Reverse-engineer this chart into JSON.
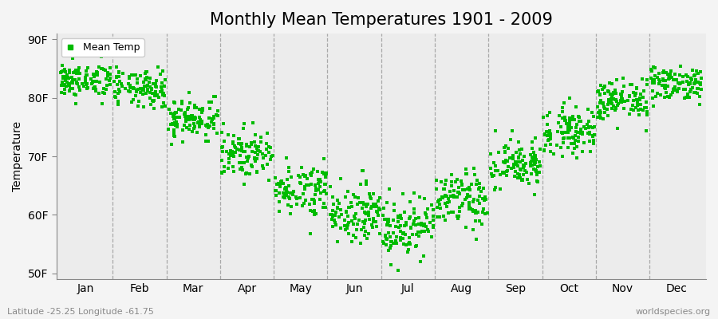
{
  "title": "Monthly Mean Temperatures 1901 - 2009",
  "ylabel": "Temperature",
  "xlabel_labels": [
    "Jan",
    "Feb",
    "Mar",
    "Apr",
    "May",
    "Jun",
    "Jul",
    "Aug",
    "Sep",
    "Oct",
    "Nov",
    "Dec"
  ],
  "yticks": [
    50,
    60,
    70,
    80,
    90
  ],
  "ytick_labels": [
    "50F",
    "60F",
    "70F",
    "80F",
    "90F"
  ],
  "ylim": [
    49,
    91
  ],
  "dot_color": "#00bb00",
  "dot_size": 6,
  "background_color": "#f4f4f4",
  "plot_bg_color": "#ececec",
  "grid_color": "#999999",
  "title_fontsize": 15,
  "axis_fontsize": 10,
  "legend_label": "Mean Temp",
  "footer_left": "Latitude -25.25 Longitude -61.75",
  "footer_right": "worldspecies.org",
  "monthly_means": [
    83.0,
    81.5,
    76.5,
    70.5,
    64.5,
    60.5,
    58.0,
    62.5,
    68.5,
    74.5,
    79.5,
    82.5
  ],
  "monthly_stds": [
    1.5,
    1.6,
    1.8,
    2.0,
    2.2,
    2.4,
    2.6,
    2.4,
    2.2,
    2.0,
    1.8,
    1.5
  ],
  "n_years": 109,
  "seed": 42
}
